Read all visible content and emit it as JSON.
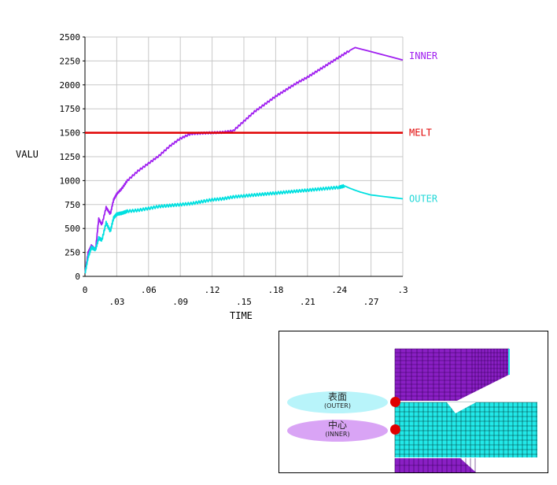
{
  "chart_data": {
    "type": "line",
    "title": "",
    "xlabel": "TIME",
    "ylabel": "VALU",
    "xlim": [
      0,
      0.3
    ],
    "ylim": [
      0,
      2500
    ],
    "grid": true,
    "legend": "right",
    "x_ticks_top_row": [
      "0",
      ".06",
      ".12",
      ".18",
      ".24",
      ".3"
    ],
    "x_ticks_bottom_row": [
      ".03",
      ".09",
      ".15",
      ".21",
      ".27"
    ],
    "y_ticks": [
      "0",
      "250",
      "500",
      "750",
      "1000",
      "1250",
      "1500",
      "1750",
      "2000",
      "2250",
      "2500"
    ],
    "series": [
      {
        "name": "INNER",
        "color": "#a020f0",
        "x": [
          0,
          0.003,
          0.006,
          0.01,
          0.013,
          0.016,
          0.02,
          0.024,
          0.027,
          0.03,
          0.035,
          0.04,
          0.05,
          0.06,
          0.07,
          0.08,
          0.09,
          0.1,
          0.11,
          0.12,
          0.13,
          0.14,
          0.15,
          0.16,
          0.17,
          0.18,
          0.19,
          0.2,
          0.21,
          0.22,
          0.23,
          0.24,
          0.25,
          0.255,
          0.3
        ],
        "y": [
          30,
          250,
          320,
          280,
          600,
          540,
          720,
          650,
          800,
          860,
          920,
          1000,
          1100,
          1180,
          1260,
          1360,
          1440,
          1490,
          1495,
          1500,
          1505,
          1520,
          1620,
          1720,
          1800,
          1880,
          1950,
          2020,
          2080,
          2150,
          2220,
          2290,
          2360,
          2390,
          2260
        ]
      },
      {
        "name": "MELT",
        "color": "#e00000",
        "x": [
          0,
          0.3
        ],
        "y": [
          1500,
          1500
        ]
      },
      {
        "name": "OUTER",
        "color": "#00e0e0",
        "x": [
          0,
          0.003,
          0.006,
          0.01,
          0.013,
          0.016,
          0.02,
          0.024,
          0.027,
          0.03,
          0.035,
          0.04,
          0.05,
          0.06,
          0.07,
          0.08,
          0.09,
          0.1,
          0.11,
          0.12,
          0.13,
          0.14,
          0.15,
          0.16,
          0.17,
          0.18,
          0.19,
          0.2,
          0.21,
          0.22,
          0.23,
          0.24,
          0.245,
          0.25,
          0.26,
          0.27,
          0.3
        ],
        "y": [
          30,
          200,
          300,
          280,
          400,
          380,
          560,
          470,
          610,
          650,
          660,
          680,
          690,
          710,
          730,
          740,
          750,
          760,
          780,
          800,
          810,
          830,
          840,
          850,
          860,
          870,
          880,
          890,
          900,
          910,
          920,
          930,
          945,
          920,
          880,
          850,
          810
        ]
      }
    ]
  },
  "inset": {
    "outer_label": "表面",
    "outer_sub": "(OUTER)",
    "inner_label": "中心",
    "inner_sub": "(INNER)",
    "outer_color": "#b8f4fa",
    "inner_color": "#d9a4f5",
    "mesh_top_color": "#8a1fc4",
    "mesh_mid_color": "#22e8e8",
    "marker_color": "#e00000"
  }
}
